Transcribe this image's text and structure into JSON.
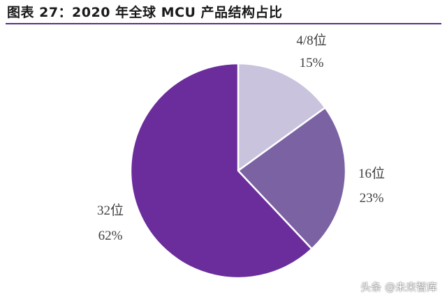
{
  "header": {
    "title": "图表 27：2020 年全球 MCU 产品结构占比"
  },
  "watermark": {
    "text": "头条 @未来智库"
  },
  "colors": {
    "rule": "#5a2d82"
  },
  "chart_data": {
    "type": "pie",
    "title": "图表 27：2020 年全球 MCU 产品结构占比",
    "start_angle": "12 o'clock",
    "direction": "clockwise",
    "legend": "none",
    "slices": [
      {
        "label": "4/8位",
        "value": 15,
        "value_label": "15%",
        "color": "#c9c3dd"
      },
      {
        "label": "16位",
        "value": 23,
        "value_label": "23%",
        "color": "#7b62a3"
      },
      {
        "label": "32位",
        "value": 62,
        "value_label": "62%",
        "color": "#6a2d9b"
      }
    ]
  }
}
